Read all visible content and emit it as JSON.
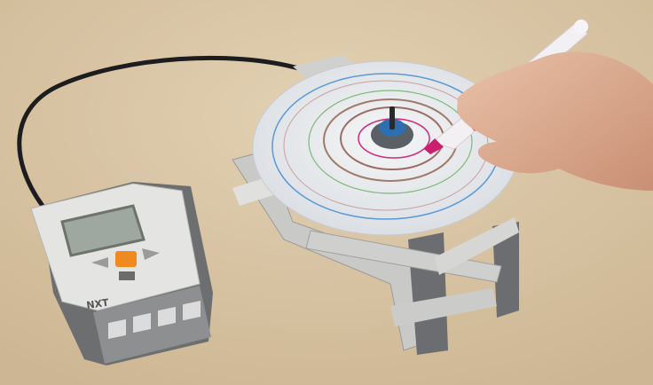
{
  "image": {
    "brick_label": "NXT"
  }
}
